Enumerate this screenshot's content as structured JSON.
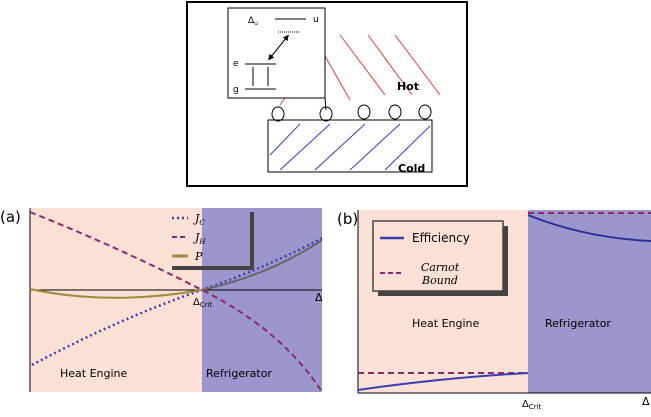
{
  "diagram": {
    "delta": {
      "symbol": "Δ",
      "sub": "u"
    },
    "u": "u",
    "e": "e",
    "g": "g",
    "hot": "Hot",
    "cold": "Cold"
  },
  "panel_a": {
    "label": "(a)",
    "legend": [
      {
        "symbol": "J",
        "sub": "C"
      },
      {
        "symbol": "J",
        "sub": "H"
      },
      {
        "symbol": "P"
      }
    ],
    "heat_engine": "Heat Engine",
    "refrigerator": "Refrigerator",
    "crit": {
      "symbol": "Δ",
      "sub": "Crit"
    },
    "axis": "Δ"
  },
  "panel_b": {
    "label": "(b)",
    "legend": {
      "efficiency": "Efficiency",
      "carnot": [
        "Carnot",
        "Bound"
      ]
    },
    "heat_engine": "Heat Engine",
    "refrigerator": "Refrigerator",
    "crit": {
      "symbol": "Δ",
      "sub": "Crit"
    },
    "axis": "Δ"
  }
}
